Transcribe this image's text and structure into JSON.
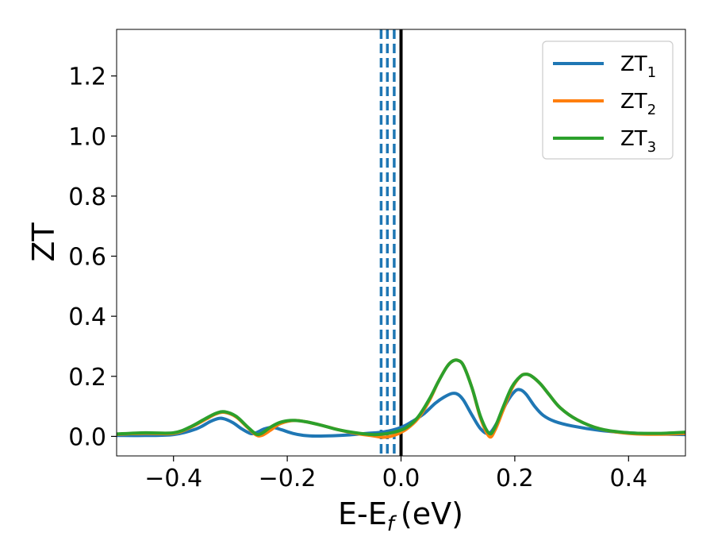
{
  "chart_data": {
    "type": "line",
    "xlabel": "E-E",
    "xlabel_subscript": "f",
    "xlabel_unit": "(eV)",
    "ylabel": "ZT",
    "xlim": [
      -0.5,
      0.5
    ],
    "ylim": [
      -0.065,
      1.355
    ],
    "xticks": [
      -0.4,
      -0.2,
      0.0,
      0.2,
      0.4
    ],
    "xtick_labels": [
      "−0.4",
      "−0.2",
      "0.0",
      "0.2",
      "0.4"
    ],
    "yticks": [
      0.0,
      0.2,
      0.4,
      0.6,
      0.8,
      1.0,
      1.2
    ],
    "ytick_labels": [
      "0.0",
      "0.2",
      "0.4",
      "0.6",
      "0.8",
      "1.0",
      "1.2"
    ],
    "grid": false,
    "legend_position": "top-right",
    "series": [
      {
        "name": "ZT",
        "name_subscript": "1",
        "color": "#1f77b4",
        "x": [
          -0.5,
          -0.45,
          -0.4,
          -0.36,
          -0.335,
          -0.32,
          -0.31,
          -0.295,
          -0.28,
          -0.265,
          -0.255,
          -0.24,
          -0.225,
          -0.21,
          -0.19,
          -0.17,
          -0.15,
          -0.12,
          -0.09,
          -0.06,
          -0.03,
          0.0,
          0.02,
          0.04,
          0.06,
          0.075,
          0.09,
          0.1,
          0.11,
          0.125,
          0.14,
          0.155,
          0.17,
          0.185,
          0.2,
          0.21,
          0.22,
          0.235,
          0.25,
          0.27,
          0.3,
          0.35,
          0.4,
          0.45,
          0.5
        ],
        "y": [
          0.003,
          0.003,
          0.006,
          0.025,
          0.05,
          0.06,
          0.058,
          0.045,
          0.025,
          0.01,
          0.012,
          0.025,
          0.03,
          0.022,
          0.01,
          0.003,
          0.001,
          0.002,
          0.005,
          0.01,
          0.015,
          0.03,
          0.05,
          0.075,
          0.11,
          0.13,
          0.143,
          0.14,
          0.12,
          0.07,
          0.025,
          0.01,
          0.05,
          0.11,
          0.15,
          0.155,
          0.14,
          0.1,
          0.07,
          0.05,
          0.035,
          0.02,
          0.012,
          0.008,
          0.006
        ]
      },
      {
        "name": "ZT",
        "name_subscript": "2",
        "color": "#ff7f0e",
        "x": [
          -0.5,
          -0.45,
          -0.4,
          -0.37,
          -0.345,
          -0.325,
          -0.31,
          -0.29,
          -0.27,
          -0.255,
          -0.245,
          -0.23,
          -0.215,
          -0.2,
          -0.185,
          -0.165,
          -0.14,
          -0.11,
          -0.08,
          -0.05,
          -0.03,
          -0.01,
          0.01,
          0.03,
          0.05,
          0.065,
          0.08,
          0.09,
          0.1,
          0.11,
          0.125,
          0.14,
          0.155,
          0.165,
          0.18,
          0.195,
          0.21,
          0.22,
          0.23,
          0.245,
          0.26,
          0.28,
          0.31,
          0.35,
          0.4,
          0.45,
          0.5
        ],
        "y": [
          0.007,
          0.01,
          0.01,
          0.03,
          0.055,
          0.075,
          0.08,
          0.065,
          0.03,
          0.005,
          0.003,
          0.02,
          0.04,
          0.05,
          0.053,
          0.048,
          0.037,
          0.022,
          0.01,
          0.002,
          -0.003,
          0.005,
          0.025,
          0.06,
          0.12,
          0.18,
          0.23,
          0.25,
          0.253,
          0.235,
          0.16,
          0.06,
          0.0,
          0.02,
          0.09,
          0.16,
          0.2,
          0.207,
          0.2,
          0.175,
          0.14,
          0.095,
          0.055,
          0.025,
          0.01,
          0.007,
          0.01
        ]
      },
      {
        "name": "ZT",
        "name_subscript": "3",
        "color": "#2ca02c",
        "x": [
          -0.5,
          -0.45,
          -0.4,
          -0.37,
          -0.345,
          -0.325,
          -0.31,
          -0.29,
          -0.27,
          -0.255,
          -0.245,
          -0.23,
          -0.215,
          -0.2,
          -0.185,
          -0.165,
          -0.14,
          -0.11,
          -0.08,
          -0.05,
          -0.03,
          -0.01,
          0.01,
          0.03,
          0.05,
          0.065,
          0.08,
          0.09,
          0.1,
          0.11,
          0.125,
          0.14,
          0.155,
          0.165,
          0.18,
          0.195,
          0.21,
          0.22,
          0.23,
          0.245,
          0.26,
          0.28,
          0.31,
          0.35,
          0.4,
          0.45,
          0.5
        ],
        "y": [
          0.008,
          0.012,
          0.012,
          0.032,
          0.058,
          0.077,
          0.082,
          0.067,
          0.032,
          0.008,
          0.01,
          0.03,
          0.045,
          0.052,
          0.053,
          0.048,
          0.037,
          0.022,
          0.012,
          0.006,
          0.008,
          0.015,
          0.03,
          0.065,
          0.125,
          0.18,
          0.23,
          0.25,
          0.253,
          0.235,
          0.16,
          0.065,
          0.01,
          0.03,
          0.1,
          0.165,
          0.2,
          0.207,
          0.2,
          0.175,
          0.14,
          0.095,
          0.055,
          0.025,
          0.012,
          0.01,
          0.014
        ]
      }
    ],
    "vertical_lines": [
      {
        "x": -0.035,
        "style": "dashed",
        "color": "#1f77b4"
      },
      {
        "x": -0.024,
        "style": "dashed",
        "color": "#1f77b4"
      },
      {
        "x": -0.012,
        "style": "dashed",
        "color": "#1f77b4"
      },
      {
        "x": 0.0,
        "style": "solid",
        "color": "#000000"
      }
    ]
  }
}
